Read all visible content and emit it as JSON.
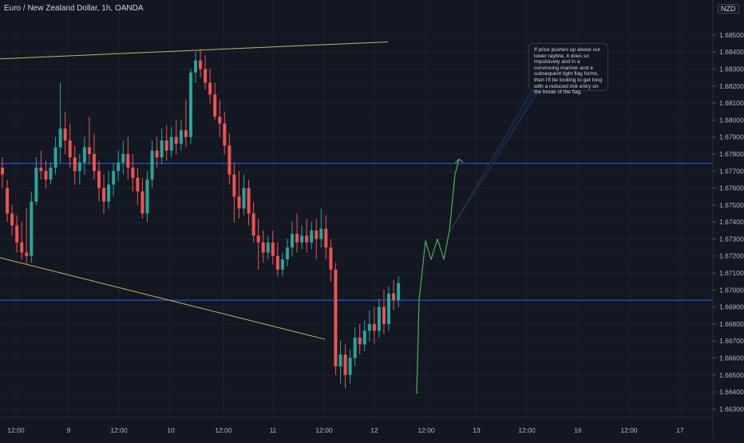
{
  "header": {
    "title": "Euro / New Zealand Dollar, 1h, OANDA",
    "currency": "NZD"
  },
  "annotation": {
    "text": "If price pushes up above our lower rayline, it does so impulsively and in a convincing manner and a subsequent tight flag forms, then I'll be looking to get long with a reduced risk entry on the break of the flag."
  },
  "colors": {
    "background": "#131722",
    "bull": "#26a69a",
    "bear": "#ef5350",
    "rayline": "#c9b458",
    "level": "#2962ff",
    "projection": "#4caf50",
    "grid": "#1e222d"
  },
  "chart_data": {
    "type": "candlestick",
    "title": "Euro / New Zealand Dollar, 1h, OANDA",
    "ylim": [
      1.6625,
      1.6865
    ],
    "y_ticks": [
      "1.68500",
      "1.68400",
      "1.68300",
      "1.68200",
      "1.68100",
      "1.68000",
      "1.67900",
      "1.67800",
      "1.67700",
      "1.67600",
      "1.67500",
      "1.67400",
      "1.67300",
      "1.67200",
      "1.67100",
      "1.67000",
      "1.66900",
      "1.66800",
      "1.66700",
      "1.66600",
      "1.66500",
      "1.66400",
      "1.66300"
    ],
    "x_ticks": [
      "12:00",
      "9",
      "12:00",
      "10",
      "12:00",
      "11",
      "12:00",
      "12",
      "12:00",
      "13",
      "12:00",
      "16",
      "12:00",
      "17"
    ],
    "horizontal_levels": [
      1.67745,
      1.6694
    ],
    "raylines": [
      {
        "name": "upper rayline",
        "from": 1.6836,
        "to": 1.6846
      },
      {
        "name": "lower rayline",
        "from": 1.6719,
        "to": 1.6671
      }
    ],
    "projection": [
      1.6639,
      1.6694,
      1.6729,
      1.6718,
      1.673,
      1.6718,
      1.6735,
      1.6768,
      1.6777
    ],
    "candles": [
      [
        1.6772,
        1.6778,
        1.6768,
        1.676
      ],
      [
        1.676,
        1.6765,
        1.6745,
        1.674
      ],
      [
        1.6745,
        1.675,
        1.6738,
        1.6732
      ],
      [
        1.6738,
        1.6744,
        1.6728,
        1.6722
      ],
      [
        1.6728,
        1.674,
        1.6722,
        1.6718
      ],
      [
        1.6722,
        1.6748,
        1.672,
        1.6715
      ],
      [
        1.672,
        1.6758,
        1.6752,
        1.6716
      ],
      [
        1.6752,
        1.6778,
        1.6772,
        1.675
      ],
      [
        1.6772,
        1.6782,
        1.677,
        1.6765
      ],
      [
        1.677,
        1.6776,
        1.6765,
        1.676
      ],
      [
        1.6765,
        1.6775,
        1.6772,
        1.6762
      ],
      [
        1.6772,
        1.679,
        1.6784,
        1.6768
      ],
      [
        1.6784,
        1.6822,
        1.6795,
        1.6775
      ],
      [
        1.6795,
        1.6805,
        1.6788,
        1.678
      ],
      [
        1.6788,
        1.6798,
        1.6778,
        1.6772
      ],
      [
        1.6778,
        1.6785,
        1.677,
        1.6762
      ],
      [
        1.677,
        1.678,
        1.6775,
        1.6762
      ],
      [
        1.6775,
        1.679,
        1.6784,
        1.6768
      ],
      [
        1.6784,
        1.6802,
        1.678,
        1.6774
      ],
      [
        1.678,
        1.6792,
        1.677,
        1.6765
      ],
      [
        1.677,
        1.6776,
        1.676,
        1.6752
      ],
      [
        1.676,
        1.6768,
        1.6752,
        1.6745
      ],
      [
        1.6752,
        1.677,
        1.6762,
        1.6748
      ],
      [
        1.6762,
        1.6775,
        1.677,
        1.6755
      ],
      [
        1.677,
        1.6782,
        1.6775,
        1.6764
      ],
      [
        1.6775,
        1.6788,
        1.678,
        1.6768
      ],
      [
        1.678,
        1.679,
        1.6772,
        1.6765
      ],
      [
        1.6772,
        1.678,
        1.6766,
        1.6758
      ],
      [
        1.6766,
        1.6772,
        1.6758,
        1.675
      ],
      [
        1.6758,
        1.6766,
        1.6745,
        1.6742
      ],
      [
        1.6745,
        1.677,
        1.6765,
        1.674
      ],
      [
        1.6765,
        1.6788,
        1.6782,
        1.676
      ],
      [
        1.6782,
        1.679,
        1.6778,
        1.6772
      ],
      [
        1.6778,
        1.6795,
        1.6788,
        1.6774
      ],
      [
        1.6788,
        1.6797,
        1.6782,
        1.6776
      ],
      [
        1.6782,
        1.6796,
        1.679,
        1.6778
      ],
      [
        1.679,
        1.68,
        1.6786,
        1.678
      ],
      [
        1.6786,
        1.68,
        1.6794,
        1.6782
      ],
      [
        1.6794,
        1.6812,
        1.679,
        1.6784
      ],
      [
        1.679,
        1.683,
        1.6828,
        1.6786
      ],
      [
        1.6828,
        1.684,
        1.6835,
        1.6822
      ],
      [
        1.6835,
        1.6842,
        1.683,
        1.6825
      ],
      [
        1.683,
        1.6838,
        1.6822,
        1.6818
      ],
      [
        1.6822,
        1.683,
        1.6815,
        1.681
      ],
      [
        1.6815,
        1.6822,
        1.6802,
        1.68
      ],
      [
        1.6802,
        1.6812,
        1.6798,
        1.679
      ],
      [
        1.6798,
        1.6805,
        1.6785,
        1.678
      ],
      [
        1.6785,
        1.6792,
        1.6768,
        1.6762
      ],
      [
        1.6768,
        1.6775,
        1.6755,
        1.674
      ],
      [
        1.6755,
        1.677,
        1.6748,
        1.6742
      ],
      [
        1.6748,
        1.6768,
        1.676,
        1.6744
      ],
      [
        1.676,
        1.6765,
        1.6745,
        1.6738
      ],
      [
        1.6745,
        1.6752,
        1.6732,
        1.6728
      ],
      [
        1.6732,
        1.6742,
        1.6728,
        1.6712
      ],
      [
        1.6728,
        1.6735,
        1.6722,
        1.6716
      ],
      [
        1.6722,
        1.6732,
        1.6728,
        1.6718
      ],
      [
        1.6728,
        1.6735,
        1.672,
        1.6715
      ],
      [
        1.672,
        1.6728,
        1.6712,
        1.6708
      ],
      [
        1.6712,
        1.6722,
        1.6718,
        1.6708
      ],
      [
        1.6718,
        1.673,
        1.6725,
        1.6714
      ],
      [
        1.6725,
        1.674,
        1.6733,
        1.672
      ],
      [
        1.6733,
        1.6745,
        1.6728,
        1.6722
      ],
      [
        1.6728,
        1.6738,
        1.6732,
        1.6724
      ],
      [
        1.6732,
        1.6742,
        1.6728,
        1.6722
      ],
      [
        1.6728,
        1.674,
        1.6735,
        1.6724
      ],
      [
        1.6735,
        1.6742,
        1.673,
        1.6718
      ],
      [
        1.673,
        1.6748,
        1.6736,
        1.6725
      ],
      [
        1.6736,
        1.6744,
        1.6725,
        1.6718
      ],
      [
        1.6725,
        1.673,
        1.6712,
        1.6705
      ],
      [
        1.6712,
        1.6716,
        1.6655,
        1.665
      ],
      [
        1.6655,
        1.667,
        1.6662,
        1.6645
      ],
      [
        1.6662,
        1.6668,
        1.665,
        1.6642
      ],
      [
        1.665,
        1.6665,
        1.666,
        1.6645
      ],
      [
        1.666,
        1.6678,
        1.6672,
        1.6655
      ],
      [
        1.6672,
        1.668,
        1.6668,
        1.6662
      ],
      [
        1.6668,
        1.6682,
        1.6676,
        1.6664
      ],
      [
        1.6676,
        1.6688,
        1.668,
        1.667
      ],
      [
        1.668,
        1.669,
        1.6676,
        1.6668
      ],
      [
        1.6676,
        1.6695,
        1.669,
        1.6672
      ],
      [
        1.669,
        1.67,
        1.668,
        1.6674
      ],
      [
        1.668,
        1.6702,
        1.6698,
        1.6676
      ],
      [
        1.6698,
        1.6706,
        1.6694,
        1.6688
      ],
      [
        1.6694,
        1.6708,
        1.6704,
        1.669
      ]
    ]
  }
}
